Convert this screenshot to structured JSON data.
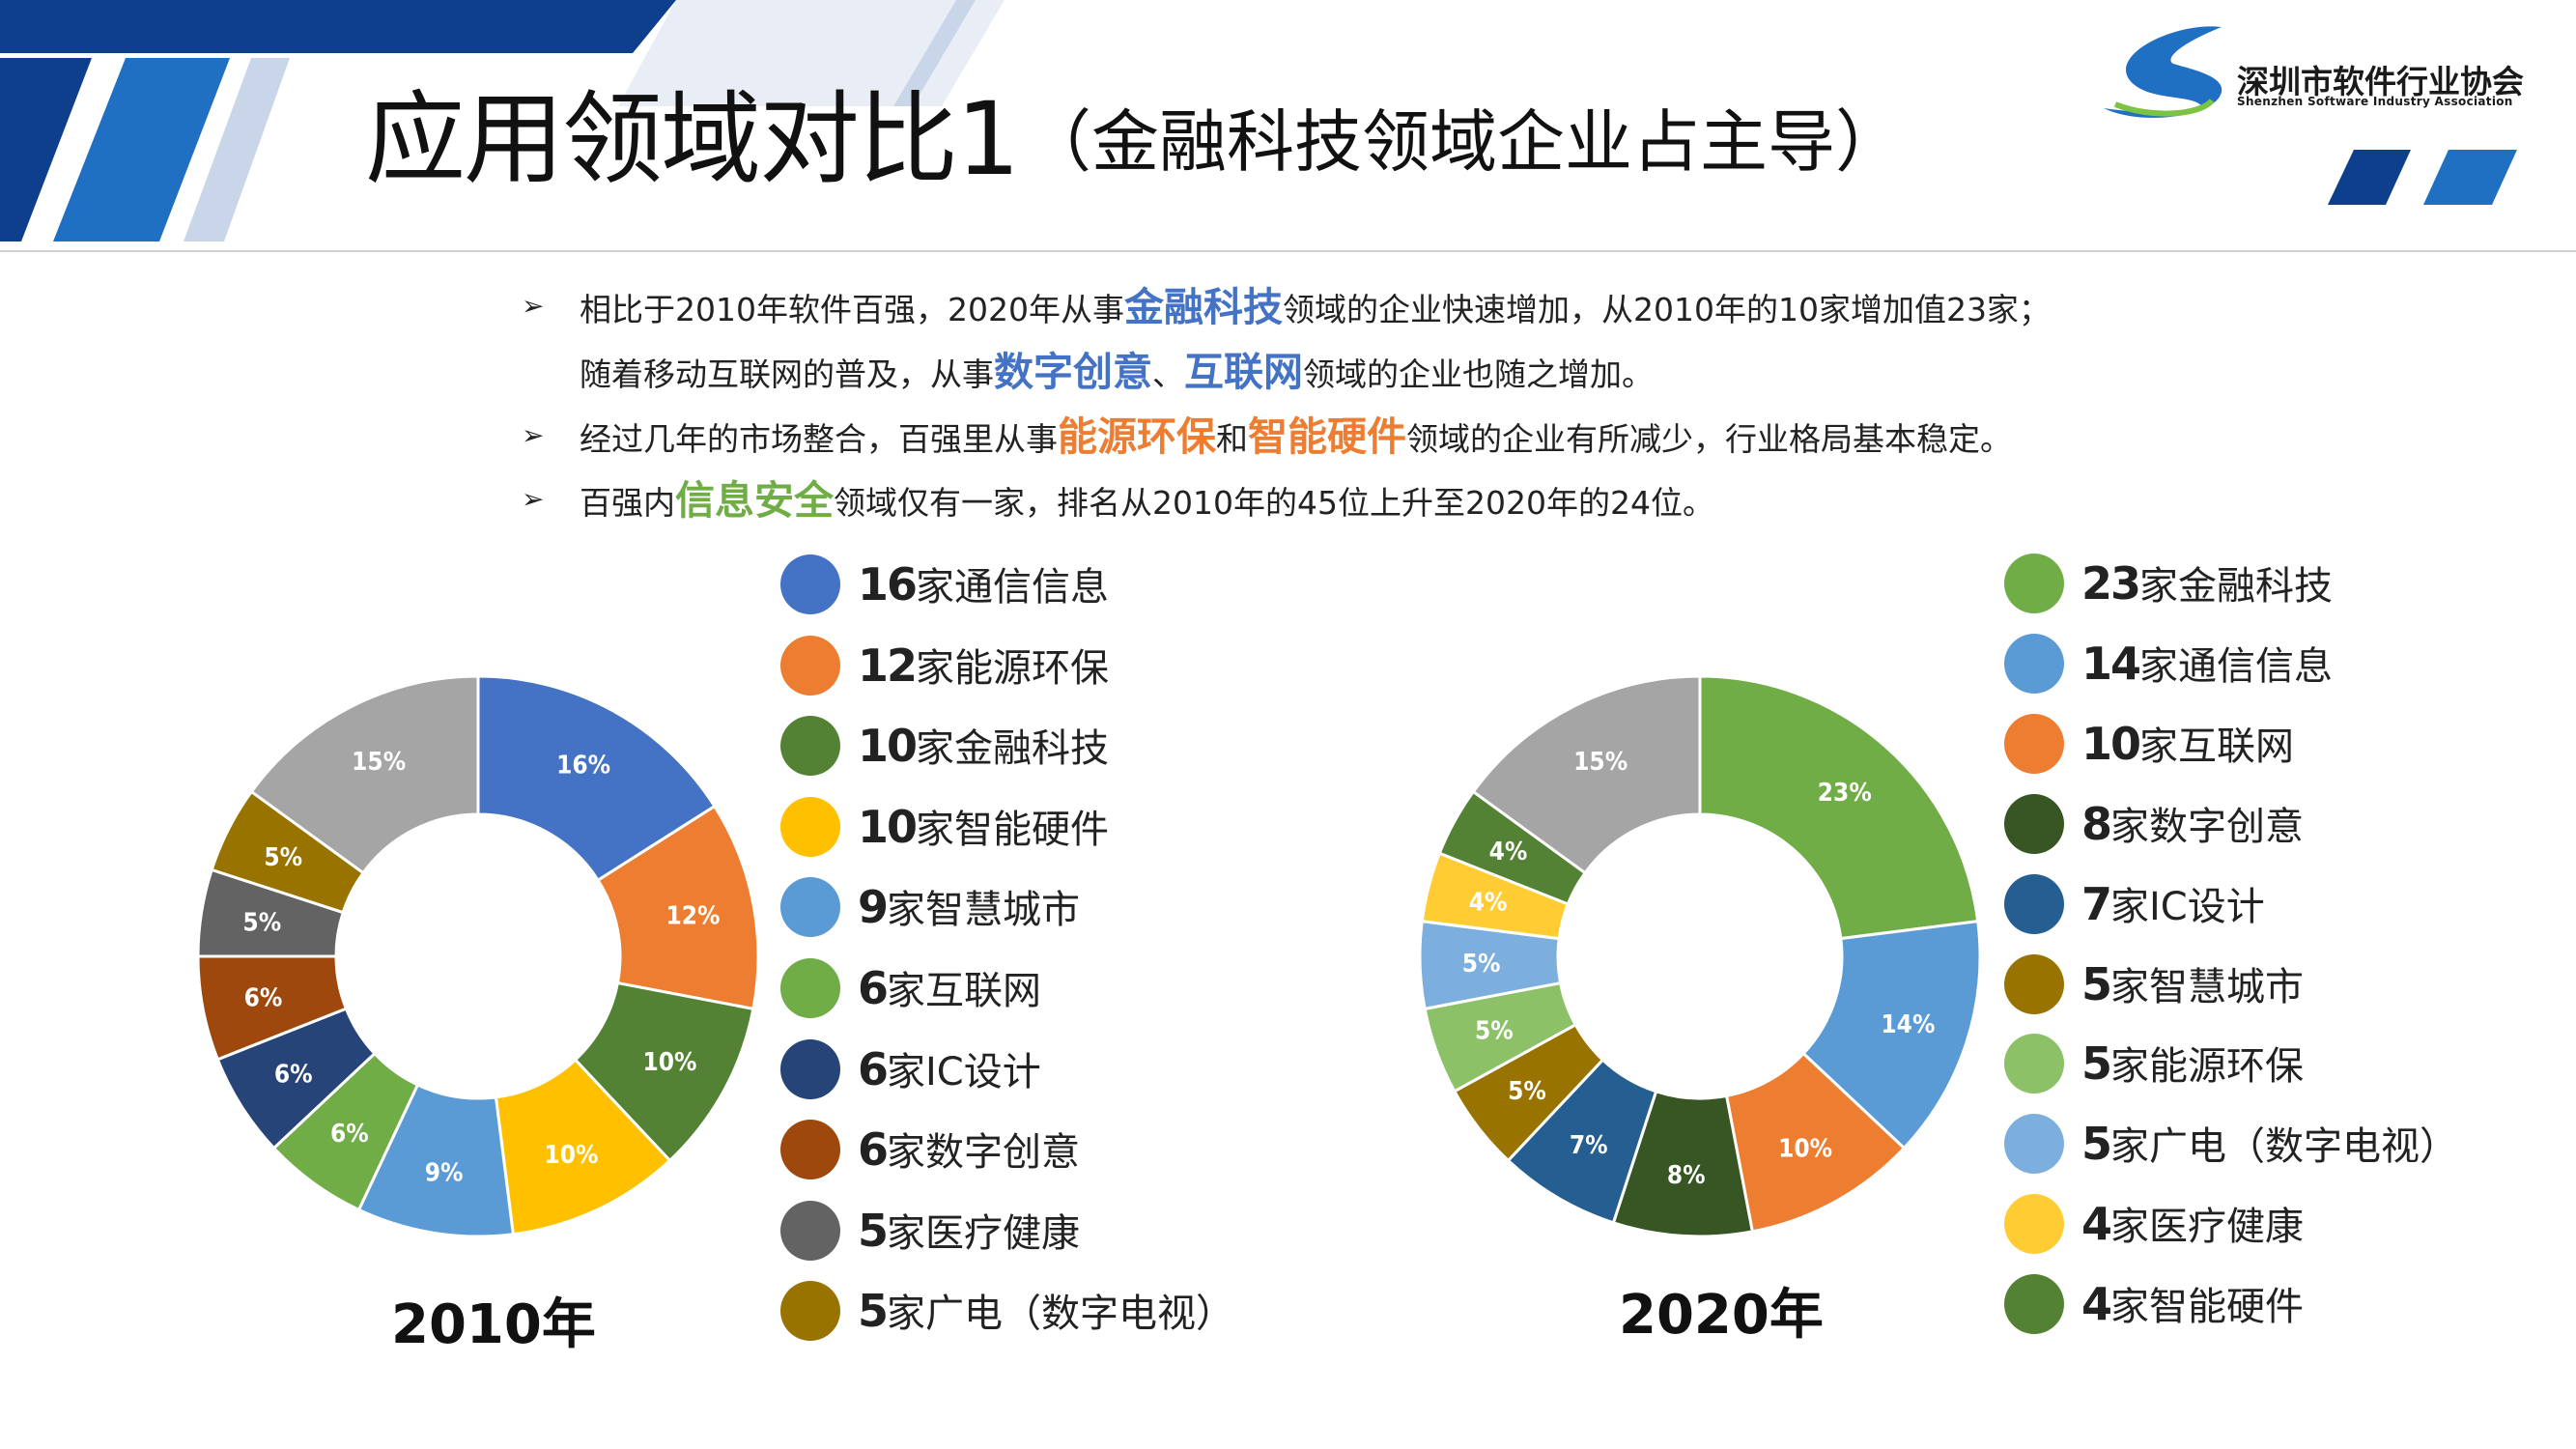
{
  "header": {
    "title": "应用领域对比1",
    "subtitle": "（金融科技领域企业占主导）",
    "logo_text": "深圳市软件行业协会",
    "logo_subtext": "Shenzhen Software Industry Association"
  },
  "bullets": [
    {
      "segments": [
        {
          "text": "相比于2010年软件百强，2020年从事"
        },
        {
          "text": "金融科技",
          "hl": "blue"
        },
        {
          "text": "领域的企业快速增加，从2010年的10家增加值23家；"
        }
      ]
    },
    {
      "segments": [
        {
          "text": "随着移动互联网的普及，从事"
        },
        {
          "text": "数字创意",
          "hl": "blue"
        },
        {
          "text": "、"
        },
        {
          "text": "互联网",
          "hl": "blue"
        },
        {
          "text": "领域的企业也随之增加。"
        }
      ]
    },
    {
      "segments": [
        {
          "text": "经过几年的市场整合，百强里从事"
        },
        {
          "text": "能源环保",
          "hl": "orange"
        },
        {
          "text": "和"
        },
        {
          "text": "智能硬件",
          "hl": "orange"
        },
        {
          "text": "领域的企业有所减少，行业格局基本稳定。"
        }
      ]
    },
    {
      "segments": [
        {
          "text": "百强内"
        },
        {
          "text": "信息安全",
          "hl": "green"
        },
        {
          "text": "领域仅有一家，排名从2010年的45位上升至2020年的24位。"
        }
      ]
    }
  ],
  "chart_data": [
    {
      "type": "pie",
      "donut": true,
      "year_label": "2010年",
      "slices": [
        {
          "count": "16",
          "name": "家通信信息",
          "value": 16,
          "label": "16%",
          "color": "#4472c4"
        },
        {
          "count": "12",
          "name": "家能源环保",
          "value": 12,
          "label": "12%",
          "color": "#ed7d31"
        },
        {
          "count": "10",
          "name": "家金融科技",
          "value": 10,
          "label": "10%",
          "color": "#548235"
        },
        {
          "count": "10",
          "name": "家智能硬件",
          "value": 10,
          "label": "10%",
          "color": "#ffc000"
        },
        {
          "count": "9",
          "name": "家智慧城市",
          "value": 9,
          "label": "9%",
          "color": "#5b9bd5"
        },
        {
          "count": "6",
          "name": "家互联网",
          "value": 6,
          "label": "6%",
          "color": "#70ad47"
        },
        {
          "count": "6",
          "name": "家IC设计",
          "value": 6,
          "label": "6%",
          "color": "#264478"
        },
        {
          "count": "6",
          "name": "家数字创意",
          "value": 6,
          "label": "6%",
          "color": "#9e480e"
        },
        {
          "count": "5",
          "name": "家医疗健康",
          "value": 5,
          "label": "5%",
          "color": "#636363"
        },
        {
          "count": "5",
          "name": "家广电（数字电视）",
          "value": 5,
          "label": "5%",
          "color": "#997300"
        },
        {
          "count": "",
          "name": "",
          "value": 15,
          "label": "15%",
          "color": "#a5a5a5"
        }
      ]
    },
    {
      "type": "pie",
      "donut": true,
      "year_label": "2020年",
      "slices": [
        {
          "count": "23",
          "name": "家金融科技",
          "value": 23,
          "label": "23%",
          "color": "#70ad47"
        },
        {
          "count": "14",
          "name": "家通信信息",
          "value": 14,
          "label": "14%",
          "color": "#5b9bd5"
        },
        {
          "count": "10",
          "name": "家互联网",
          "value": 10,
          "label": "10%",
          "color": "#ed7d31"
        },
        {
          "count": "8",
          "name": "家数字创意",
          "value": 8,
          "label": "8%",
          "color": "#375623"
        },
        {
          "count": "7",
          "name": "家IC设计",
          "value": 7,
          "label": "7%",
          "color": "#255e91"
        },
        {
          "count": "5",
          "name": "家智慧城市",
          "value": 5,
          "label": "5%",
          "color": "#997300"
        },
        {
          "count": "5",
          "name": "家能源环保",
          "value": 5,
          "label": "5%",
          "color": "#8cc168"
        },
        {
          "count": "5",
          "name": "家广电（数字电视）",
          "value": 5,
          "label": "5%",
          "color": "#7cafdd"
        },
        {
          "count": "4",
          "name": "家医疗健康",
          "value": 4,
          "label": "4%",
          "color": "#ffcd33"
        },
        {
          "count": "4",
          "name": "家智能硬件",
          "value": 4,
          "label": "4%",
          "color": "#548235"
        },
        {
          "count": "",
          "name": "",
          "value": 15,
          "label": "15%",
          "color": "#a5a5a5"
        }
      ]
    }
  ]
}
